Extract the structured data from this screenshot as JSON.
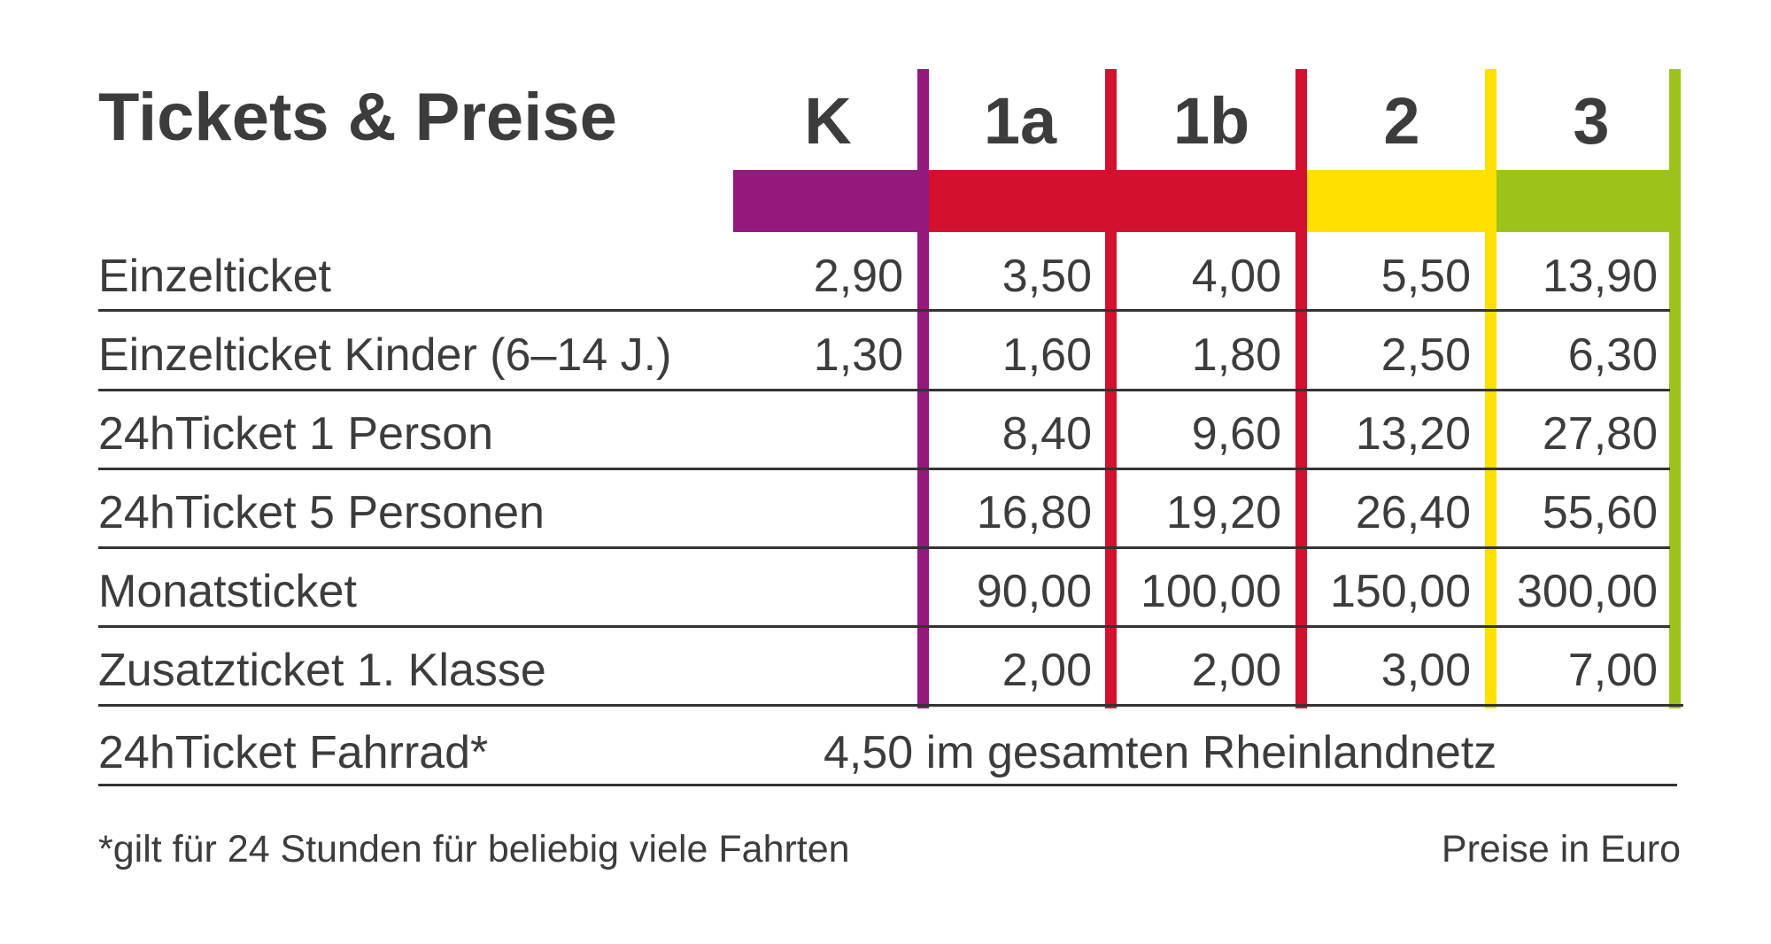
{
  "title": "Tickets & Preise",
  "zones": [
    {
      "label": "K",
      "color": "#93197d"
    },
    {
      "label": "1a",
      "color": "#d4102f"
    },
    {
      "label": "1b",
      "color": "#d4102f"
    },
    {
      "label": "2",
      "color": "#ffe000"
    },
    {
      "label": "3",
      "color": "#9bc31a"
    }
  ],
  "rows": [
    {
      "label": "Einzelticket",
      "prices": [
        "2,90",
        "3,50",
        "4,00",
        "5,50",
        "13,90"
      ]
    },
    {
      "label": "Einzelticket Kinder (6–14 J.)",
      "prices": [
        "1,30",
        "1,60",
        "1,80",
        "2,50",
        "6,30"
      ]
    },
    {
      "label": "24hTicket 1 Person",
      "prices": [
        "",
        "8,40",
        "9,60",
        "13,20",
        "27,80"
      ]
    },
    {
      "label": "24hTicket 5 Personen",
      "prices": [
        "",
        "16,80",
        "19,20",
        "26,40",
        "55,60"
      ]
    },
    {
      "label": "Monatsticket",
      "prices": [
        "",
        "90,00",
        "100,00",
        "150,00",
        "300,00"
      ]
    },
    {
      "label": "Zusatzticket 1. Klasse",
      "prices": [
        "",
        "2,00",
        "2,00",
        "3,00",
        "7,00"
      ]
    }
  ],
  "bike_row": {
    "label": "24hTicket Fahrrad*",
    "text": "4,50 im gesamten Rheinlandnetz"
  },
  "footnote": "*gilt für 24 Stunden für beliebig viele Fahrten",
  "currency_note": "Preise in Euro"
}
